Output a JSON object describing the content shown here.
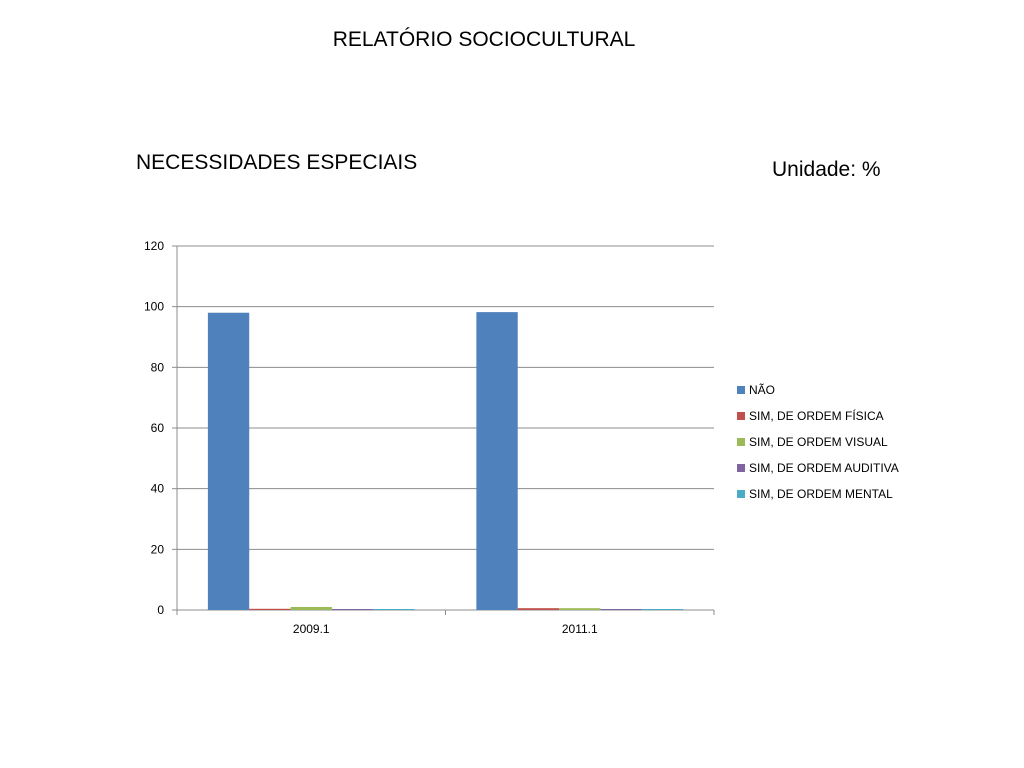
{
  "slide": {
    "title": "RELATÓRIO SOCIOCULTURAL",
    "subtitle": "NECESSIDADES ESPECIAIS",
    "unit_label": "Unidade: %"
  },
  "chart_data": {
    "type": "bar",
    "title": "",
    "xlabel": "",
    "ylabel": "",
    "categories": [
      "2009.1",
      "2011.1"
    ],
    "series": [
      {
        "name": "NÃO",
        "color": "#4F81BD",
        "values": [
          98,
          98.2
        ]
      },
      {
        "name": "SIM, DE ORDEM FÍSICA",
        "color": "#C0504D",
        "values": [
          0.4,
          0.6
        ]
      },
      {
        "name": "SIM, DE ORDEM VISUAL",
        "color": "#9BBB59",
        "values": [
          1.0,
          0.6
        ]
      },
      {
        "name": "SIM, DE ORDEM AUDITIVA",
        "color": "#8064A2",
        "values": [
          0.3,
          0.3
        ]
      },
      {
        "name": "SIM, DE ORDEM MENTAL",
        "color": "#4BACC6",
        "values": [
          0.1,
          0.1
        ]
      }
    ],
    "ylim": [
      0,
      120
    ],
    "yticks": [
      0,
      20,
      40,
      60,
      80,
      100,
      120
    ],
    "ytick_labels": [
      "0",
      "20",
      "40",
      "60",
      "80",
      "100",
      "120"
    ],
    "grid": true,
    "legend_position": "right"
  }
}
